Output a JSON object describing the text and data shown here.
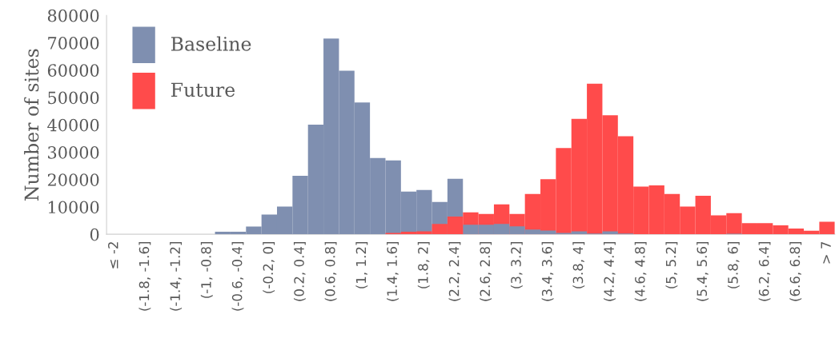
{
  "chart_data": {
    "type": "bar",
    "ylabel": "Number of sites",
    "categories": [
      "≤ -2",
      null,
      "(-1.8, -1.6]",
      null,
      "(-1.4, -1.2]",
      null,
      "(-1, -0.8]",
      null,
      "(-0.6, -0.4]",
      null,
      "(-0.2, 0]",
      null,
      "(0.2, 0.4]",
      null,
      "(0.6, 0.8]",
      null,
      "(1, 1.2]",
      null,
      "(1.4, 1.6]",
      null,
      "(1.8, 2]",
      null,
      "(2.2, 2.4]",
      null,
      "(2.6, 2.8]",
      null,
      "(3, 3.2]",
      null,
      "(3.4, 3.6]",
      null,
      "(3.8, 4]",
      null,
      "(4.2, 4.4]",
      null,
      "(4.6, 4.8]",
      null,
      "(5, 5.2]",
      null,
      "(5.4, 5.6]",
      null,
      "(5.8, 6]",
      null,
      "(6.2, 6.4]",
      null,
      "(6.6, 6.8]",
      null,
      "> 7"
    ],
    "series": [
      {
        "name": "Baseline",
        "color": "#7f8fb0",
        "values": [
          0,
          0,
          0,
          0,
          0,
          0,
          0,
          900,
          900,
          2800,
          7200,
          10100,
          21400,
          40100,
          71500,
          59800,
          48200,
          27900,
          27000,
          15600,
          16200,
          11800,
          20300,
          3500,
          3500,
          3800,
          2900,
          1700,
          1400,
          500,
          1100,
          300,
          1100,
          300,
          0,
          0,
          0,
          0,
          0,
          0,
          200,
          0,
          0,
          0,
          0,
          0,
          0
        ]
      },
      {
        "name": "Future",
        "color": "#ff4b4b",
        "values": [
          0,
          0,
          0,
          0,
          0,
          0,
          0,
          0,
          0,
          0,
          0,
          0,
          0,
          0,
          0,
          0,
          0,
          0,
          500,
          900,
          1100,
          3800,
          6500,
          8000,
          7400,
          10900,
          7400,
          14700,
          20100,
          31500,
          42200,
          55000,
          43500,
          35800,
          17400,
          17900,
          14700,
          10100,
          14100,
          6900,
          7700,
          4100,
          4100,
          3300,
          2100,
          1300,
          4600
        ]
      }
    ],
    "ylim": [
      0,
      80000
    ],
    "yticks": [
      0,
      10000,
      20000,
      30000,
      40000,
      50000,
      60000,
      70000,
      80000
    ],
    "legend": "top left"
  }
}
